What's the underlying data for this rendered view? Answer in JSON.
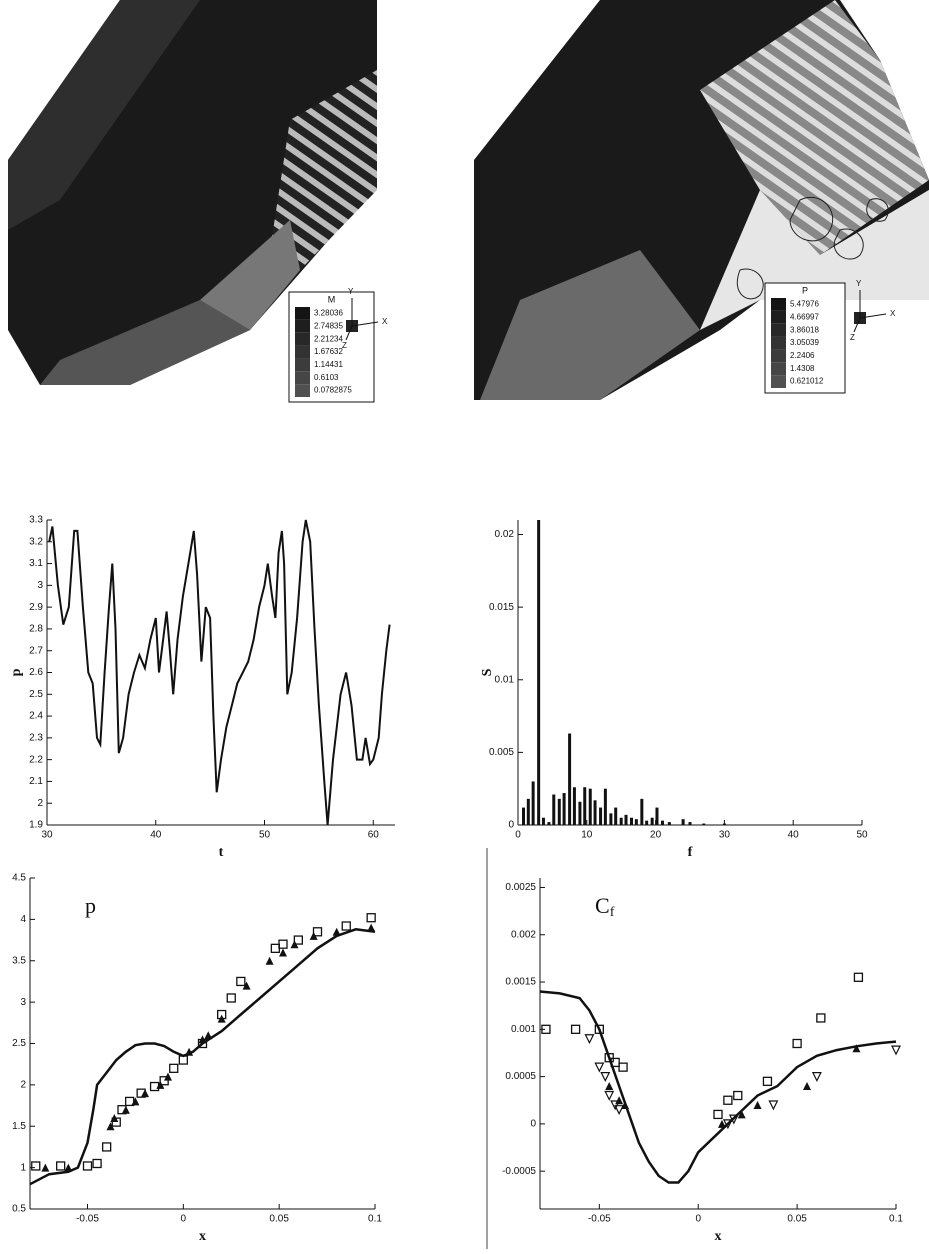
{
  "chart_data": [
    {
      "type": "contour",
      "title": "M",
      "levels": [
        3.28036,
        2.74835,
        2.21234,
        1.67632,
        1.14431,
        0.6103,
        0.0782875
      ],
      "axes_labels": [
        "Y",
        "X",
        "Z"
      ]
    },
    {
      "type": "contour",
      "title": "P",
      "levels": [
        5.47976,
        4.66997,
        3.86018,
        3.05039,
        2.2406,
        1.4308,
        0.621012
      ],
      "axes_labels": [
        "Y",
        "X",
        "Z"
      ]
    },
    {
      "type": "line",
      "xlabel": "t",
      "ylabel": "p",
      "color": "#111",
      "x": [
        30.2,
        30.5,
        31,
        31.5,
        32,
        32.5,
        32.8,
        33.3,
        33.8,
        34.2,
        34.6,
        34.9,
        35.3,
        35.7,
        36,
        36.3,
        36.6,
        37,
        37.5,
        38,
        38.5,
        39,
        39.5,
        40,
        40.3,
        40.6,
        41,
        41.3,
        41.6,
        42,
        42.5,
        43,
        43.5,
        43.8,
        44.2,
        44.6,
        45,
        45.3,
        45.6,
        46,
        46.5,
        47,
        47.5,
        48,
        48.5,
        49,
        49.5,
        50,
        50.3,
        50.7,
        51,
        51.3,
        51.6,
        51.8,
        52.1,
        52.5,
        53,
        53.5,
        53.8,
        54.2,
        54.6,
        55,
        55.5,
        55.8,
        56.3,
        57,
        57.5,
        58,
        58.5,
        59,
        59.3,
        59.7,
        60,
        60.5,
        60.8,
        61.2,
        61.5
      ],
      "values": [
        3.2,
        3.27,
        3.0,
        2.82,
        2.9,
        3.25,
        3.25,
        2.9,
        2.6,
        2.55,
        2.3,
        2.27,
        2.6,
        2.9,
        3.1,
        2.8,
        2.23,
        2.3,
        2.5,
        2.6,
        2.68,
        2.62,
        2.75,
        2.85,
        2.6,
        2.72,
        2.88,
        2.7,
        2.5,
        2.75,
        2.95,
        3.1,
        3.25,
        3.05,
        2.65,
        2.9,
        2.85,
        2.4,
        2.05,
        2.2,
        2.35,
        2.45,
        2.55,
        2.6,
        2.65,
        2.75,
        2.9,
        3.0,
        3.1,
        2.95,
        2.85,
        3.15,
        3.25,
        3.1,
        2.5,
        2.6,
        2.85,
        3.2,
        3.3,
        3.2,
        2.8,
        2.45,
        2.1,
        1.9,
        2.2,
        2.5,
        2.6,
        2.45,
        2.2,
        2.2,
        2.3,
        2.18,
        2.2,
        2.3,
        2.5,
        2.7,
        2.82
      ],
      "xlim": [
        30,
        62
      ],
      "xticks": [
        30,
        40,
        50,
        60
      ],
      "ylim": [
        1.9,
        3.3
      ],
      "yticks": [
        1.9,
        2,
        2.1,
        2.2,
        2.3,
        2.4,
        2.5,
        2.6,
        2.7,
        2.8,
        2.9,
        3,
        3.1,
        3.2,
        3.3
      ]
    },
    {
      "type": "bar",
      "xlabel": "f",
      "ylabel": "S",
      "color": "#111",
      "x": [
        0.8,
        1.5,
        2.2,
        3,
        3.7,
        4.5,
        5.2,
        6,
        6.7,
        7.5,
        8.2,
        9,
        9.7,
        10.5,
        11.2,
        12,
        12.7,
        13.5,
        14.2,
        15,
        15.7,
        16.5,
        17.2,
        18,
        18.7,
        19.5,
        20.2,
        21,
        22,
        24,
        25,
        27,
        30
      ],
      "values": [
        0.0012,
        0.0018,
        0.003,
        0.021,
        0.0005,
        0.0002,
        0.0021,
        0.0018,
        0.0022,
        0.0063,
        0.0026,
        0.0016,
        0.0026,
        0.0025,
        0.0017,
        0.0012,
        0.0025,
        0.0008,
        0.0012,
        0.0005,
        0.0007,
        0.0005,
        0.0004,
        0.0018,
        0.0003,
        0.0005,
        0.0012,
        0.0003,
        0.0002,
        0.0004,
        0.0002,
        0.0001,
        0.0001
      ],
      "xlim": [
        0,
        50
      ],
      "xticks": [
        0,
        10,
        20,
        30,
        40,
        50
      ],
      "ylim": [
        0,
        0.021
      ],
      "yticks": [
        0,
        0.005,
        0.01,
        0.015,
        0.02
      ]
    },
    {
      "type": "scatter",
      "xlabel": "x",
      "annotation": "p",
      "series": [
        {
          "marker": "line",
          "color": "#111",
          "x": [
            -0.08,
            -0.07,
            -0.06,
            -0.055,
            -0.05,
            -0.047,
            -0.045,
            -0.04,
            -0.035,
            -0.03,
            -0.025,
            -0.02,
            -0.015,
            -0.01,
            -0.005,
            0,
            0.005,
            0.01,
            0.02,
            0.03,
            0.04,
            0.05,
            0.06,
            0.07,
            0.08,
            0.09,
            0.1
          ],
          "values": [
            0.8,
            0.92,
            0.95,
            1.0,
            1.3,
            1.7,
            2.0,
            2.15,
            2.3,
            2.4,
            2.48,
            2.5,
            2.5,
            2.47,
            2.4,
            2.35,
            2.4,
            2.5,
            2.65,
            2.85,
            3.05,
            3.25,
            3.45,
            3.65,
            3.8,
            3.88,
            3.85
          ]
        },
        {
          "marker": "square",
          "color": "#111",
          "x": [
            -0.077,
            -0.064,
            -0.05,
            -0.045,
            -0.04,
            -0.035,
            -0.032,
            -0.028,
            -0.022,
            -0.015,
            -0.01,
            -0.005,
            0,
            0.01,
            0.02,
            0.025,
            0.03,
            0.048,
            0.052,
            0.06,
            0.07,
            0.085,
            0.098
          ],
          "values": [
            1.02,
            1.02,
            1.02,
            1.05,
            1.25,
            1.55,
            1.7,
            1.8,
            1.9,
            1.98,
            2.05,
            2.2,
            2.3,
            2.5,
            2.85,
            3.05,
            3.25,
            3.65,
            3.7,
            3.75,
            3.85,
            3.92,
            4.02
          ]
        },
        {
          "marker": "triangle-up",
          "color": "#111",
          "x": [
            -0.072,
            -0.06,
            -0.038,
            -0.036,
            -0.03,
            -0.025,
            -0.02,
            -0.012,
            -0.008,
            0.003,
            0.01,
            0.013,
            0.02,
            0.033,
            0.045,
            0.052,
            0.058,
            0.068,
            0.08,
            0.098
          ],
          "values": [
            1.0,
            1.0,
            1.5,
            1.6,
            1.7,
            1.8,
            1.9,
            2.0,
            2.1,
            2.4,
            2.55,
            2.6,
            2.8,
            3.2,
            3.5,
            3.6,
            3.7,
            3.8,
            3.85,
            3.9
          ]
        }
      ],
      "xlim": [
        -0.08,
        0.1
      ],
      "xticks": [
        -0.05,
        0,
        0.05,
        0.1
      ],
      "ylim": [
        0.5,
        4.5
      ],
      "yticks": [
        0.5,
        1,
        1.5,
        2,
        2.5,
        3,
        3.5,
        4,
        4.5
      ]
    },
    {
      "type": "scatter",
      "xlabel": "x",
      "annotation": "C",
      "annotation_subscript": "f",
      "series": [
        {
          "marker": "line",
          "color": "#111",
          "x": [
            -0.08,
            -0.07,
            -0.06,
            -0.055,
            -0.05,
            -0.045,
            -0.04,
            -0.035,
            -0.03,
            -0.025,
            -0.02,
            -0.015,
            -0.01,
            -0.005,
            0,
            0.01,
            0.02,
            0.03,
            0.04,
            0.05,
            0.06,
            0.07,
            0.08,
            0.09,
            0.1
          ],
          "values": [
            0.0014,
            0.00138,
            0.00133,
            0.0012,
            0.001,
            0.0007,
            0.0004,
            0.0001,
            -0.0002,
            -0.0004,
            -0.00055,
            -0.00062,
            -0.00062,
            -0.0005,
            -0.0003,
            -0.0001,
            0.0001,
            0.0003,
            0.0004,
            0.0006,
            0.00072,
            0.00078,
            0.00082,
            0.00085,
            0.00087
          ]
        },
        {
          "marker": "square",
          "color": "#111",
          "x": [
            -0.077,
            -0.062,
            -0.05,
            -0.045,
            -0.042,
            -0.038,
            0.01,
            0.015,
            0.02,
            0.035,
            0.05,
            0.062,
            0.081
          ],
          "values": [
            0.001,
            0.001,
            0.001,
            0.0007,
            0.00065,
            0.0006,
            0.0001,
            0.00025,
            0.0003,
            0.00045,
            0.00085,
            0.00112,
            0.00155
          ]
        },
        {
          "marker": "triangle-up",
          "color": "#111",
          "x": [
            -0.045,
            -0.04,
            -0.037,
            0.012,
            0.022,
            0.03,
            0.055,
            0.08
          ],
          "values": [
            0.0004,
            0.00025,
            0.0002,
            0.0,
            0.0001,
            0.0002,
            0.0004,
            0.0008
          ]
        },
        {
          "marker": "triangle-down",
          "color": "#111",
          "x": [
            -0.055,
            -0.05,
            -0.047,
            -0.045,
            -0.042,
            -0.04,
            0.015,
            0.018,
            0.038,
            0.06,
            0.1
          ],
          "values": [
            0.0009,
            0.0006,
            0.0005,
            0.0003,
            0.0002,
            0.00015,
            0.0,
            5e-05,
            0.0002,
            0.0005,
            0.00078
          ]
        }
      ],
      "xlim": [
        -0.08,
        0.1
      ],
      "xticks": [
        -0.05,
        0,
        0.05,
        0.1
      ],
      "ylim": [
        -0.0009,
        0.0026
      ],
      "yticks": [
        -0.0005,
        0,
        0.0005,
        0.001,
        0.0015,
        0.002,
        0.0025
      ]
    }
  ]
}
